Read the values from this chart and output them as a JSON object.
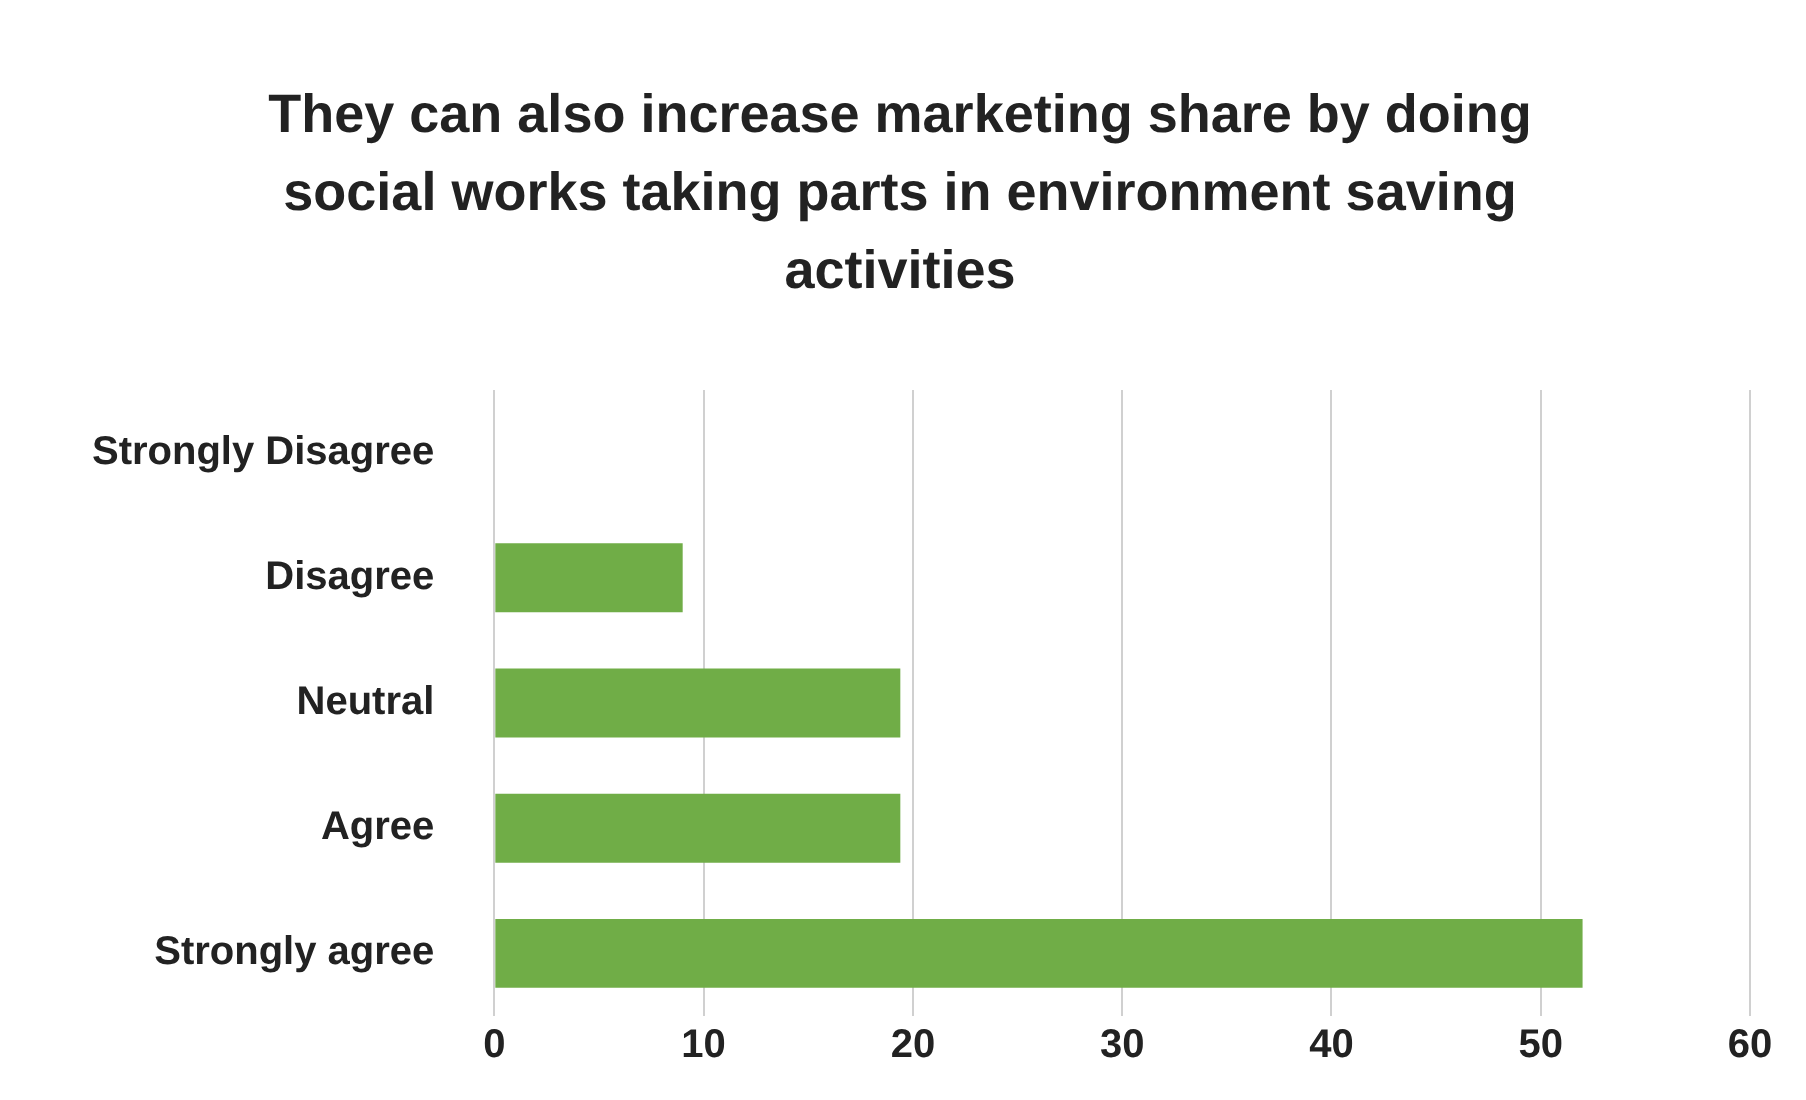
{
  "chart_data": {
    "type": "bar",
    "orientation": "horizontal",
    "title": "They can also increase marketing share by doing social works taking parts in environment saving activities",
    "categories": [
      "Strongly Disagree",
      "Disagree",
      "Neutral",
      "Agree",
      "Strongly agree"
    ],
    "values": [
      0,
      9,
      19.4,
      19.4,
      52
    ],
    "color": "#70ad47",
    "xlim": [
      0,
      60
    ],
    "xticks": [
      0,
      10,
      20,
      30,
      40,
      50,
      60
    ],
    "grid": "x",
    "legend": false
  }
}
